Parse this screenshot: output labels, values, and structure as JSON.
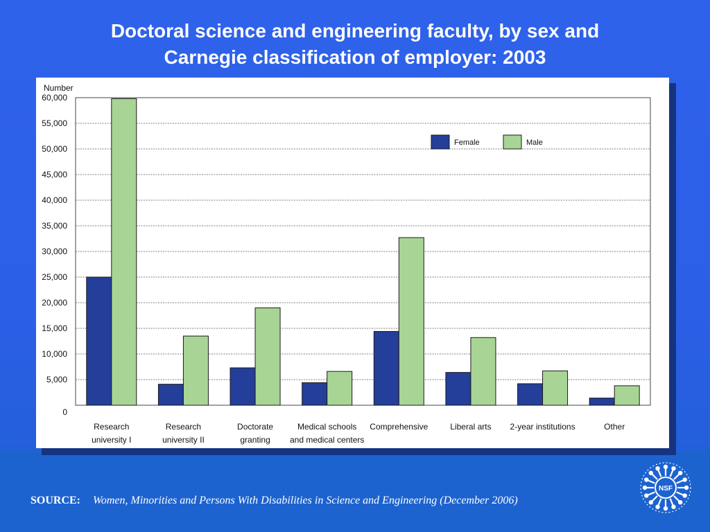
{
  "title_lines": [
    "Doctoral science and engineering faculty, by sex and",
    "Carnegie classification of employer: 2003"
  ],
  "source": {
    "label": "SOURCE:",
    "citation": "Women, Minorities and Persons With Disabilities in Science and Engineering (December 2006)"
  },
  "logo": {
    "text": "NSF",
    "icon": "nsf-logo-icon"
  },
  "colors": {
    "female": "#243f99",
    "male": "#a8d595",
    "background": "#2b5fe6"
  },
  "chart_data": {
    "type": "bar",
    "ylabel": "Number",
    "ylim": [
      0,
      60000
    ],
    "yticks": [
      0,
      5000,
      10000,
      15000,
      20000,
      25000,
      30000,
      35000,
      40000,
      45000,
      50000,
      55000,
      60000
    ],
    "ytick_labels": [
      "0",
      "5,000",
      "10,000",
      "15,000",
      "20,000",
      "25,000",
      "30,000",
      "35,000",
      "40,000",
      "45,000",
      "50,000",
      "55,000",
      "60,000"
    ],
    "grid": true,
    "legend_position": "top-right",
    "categories": [
      [
        "Research",
        "university I"
      ],
      [
        "Research",
        "university II"
      ],
      [
        "Doctorate",
        "granting"
      ],
      [
        "Medical schools",
        "and medical centers"
      ],
      [
        "Comprehensive"
      ],
      [
        "Liberal arts"
      ],
      [
        "2-year institutions"
      ],
      [
        "Other"
      ]
    ],
    "series": [
      {
        "name": "Female",
        "color": "#243f99",
        "values": [
          25000,
          4100,
          7300,
          4400,
          14400,
          6400,
          4200,
          1400
        ]
      },
      {
        "name": "Male",
        "color": "#a8d595",
        "values": [
          59800,
          13500,
          19000,
          6600,
          32700,
          13200,
          6700,
          3800
        ]
      }
    ]
  }
}
